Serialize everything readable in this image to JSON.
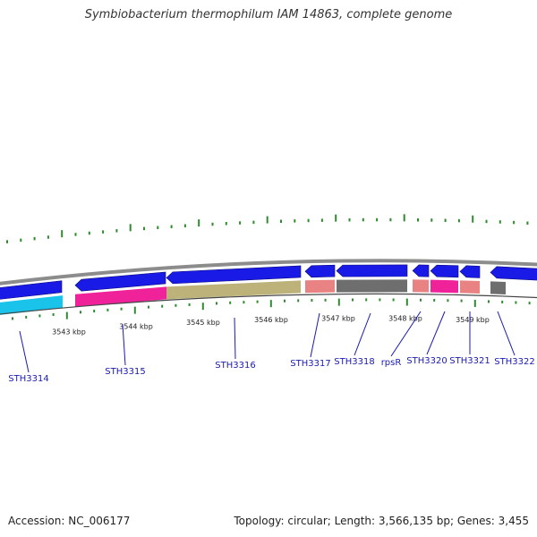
{
  "title": "Symbiobacterium thermophilum IAM 14863, complete genome",
  "footer": {
    "accession": "Accession: NC_006177",
    "summary": "Topology: circular; Length: 3,566,135 bp; Genes: 3,455"
  },
  "colors": {
    "forward_gene": "#1a1ae6",
    "backbone": "#8c8c8c",
    "tick": "#2e8b2e",
    "label": "#1a1ab0"
  },
  "scale": {
    "unit": "kbp",
    "labels": [
      "3543 kbp",
      "3544 kbp",
      "3545 kbp",
      "3546 kbp",
      "3547 kbp",
      "3548 kbp",
      "3549 kbp"
    ]
  },
  "genes": [
    {
      "name": "STH3314",
      "strand": "-",
      "cog_color": "#19c3ea"
    },
    {
      "name": "STH3315",
      "strand": "-",
      "cog_color": "#f0229a"
    },
    {
      "name": "STH3316",
      "strand": "-",
      "cog_color": "#bdb37a"
    },
    {
      "name": "STH3317",
      "strand": "-",
      "cog_color": "#e98282"
    },
    {
      "name": "STH3318",
      "strand": "-",
      "cog_color": "#6e6e6e"
    },
    {
      "name": "rpsR",
      "strand": "-",
      "cog_color": "#e98282"
    },
    {
      "name": "STH3320",
      "strand": "-",
      "cog_color": "#f0229a"
    },
    {
      "name": "STH3321",
      "strand": "-",
      "cog_color": "#e98282"
    },
    {
      "name": "STH3322",
      "strand": "-",
      "cog_color": "#6e6e6e"
    }
  ]
}
